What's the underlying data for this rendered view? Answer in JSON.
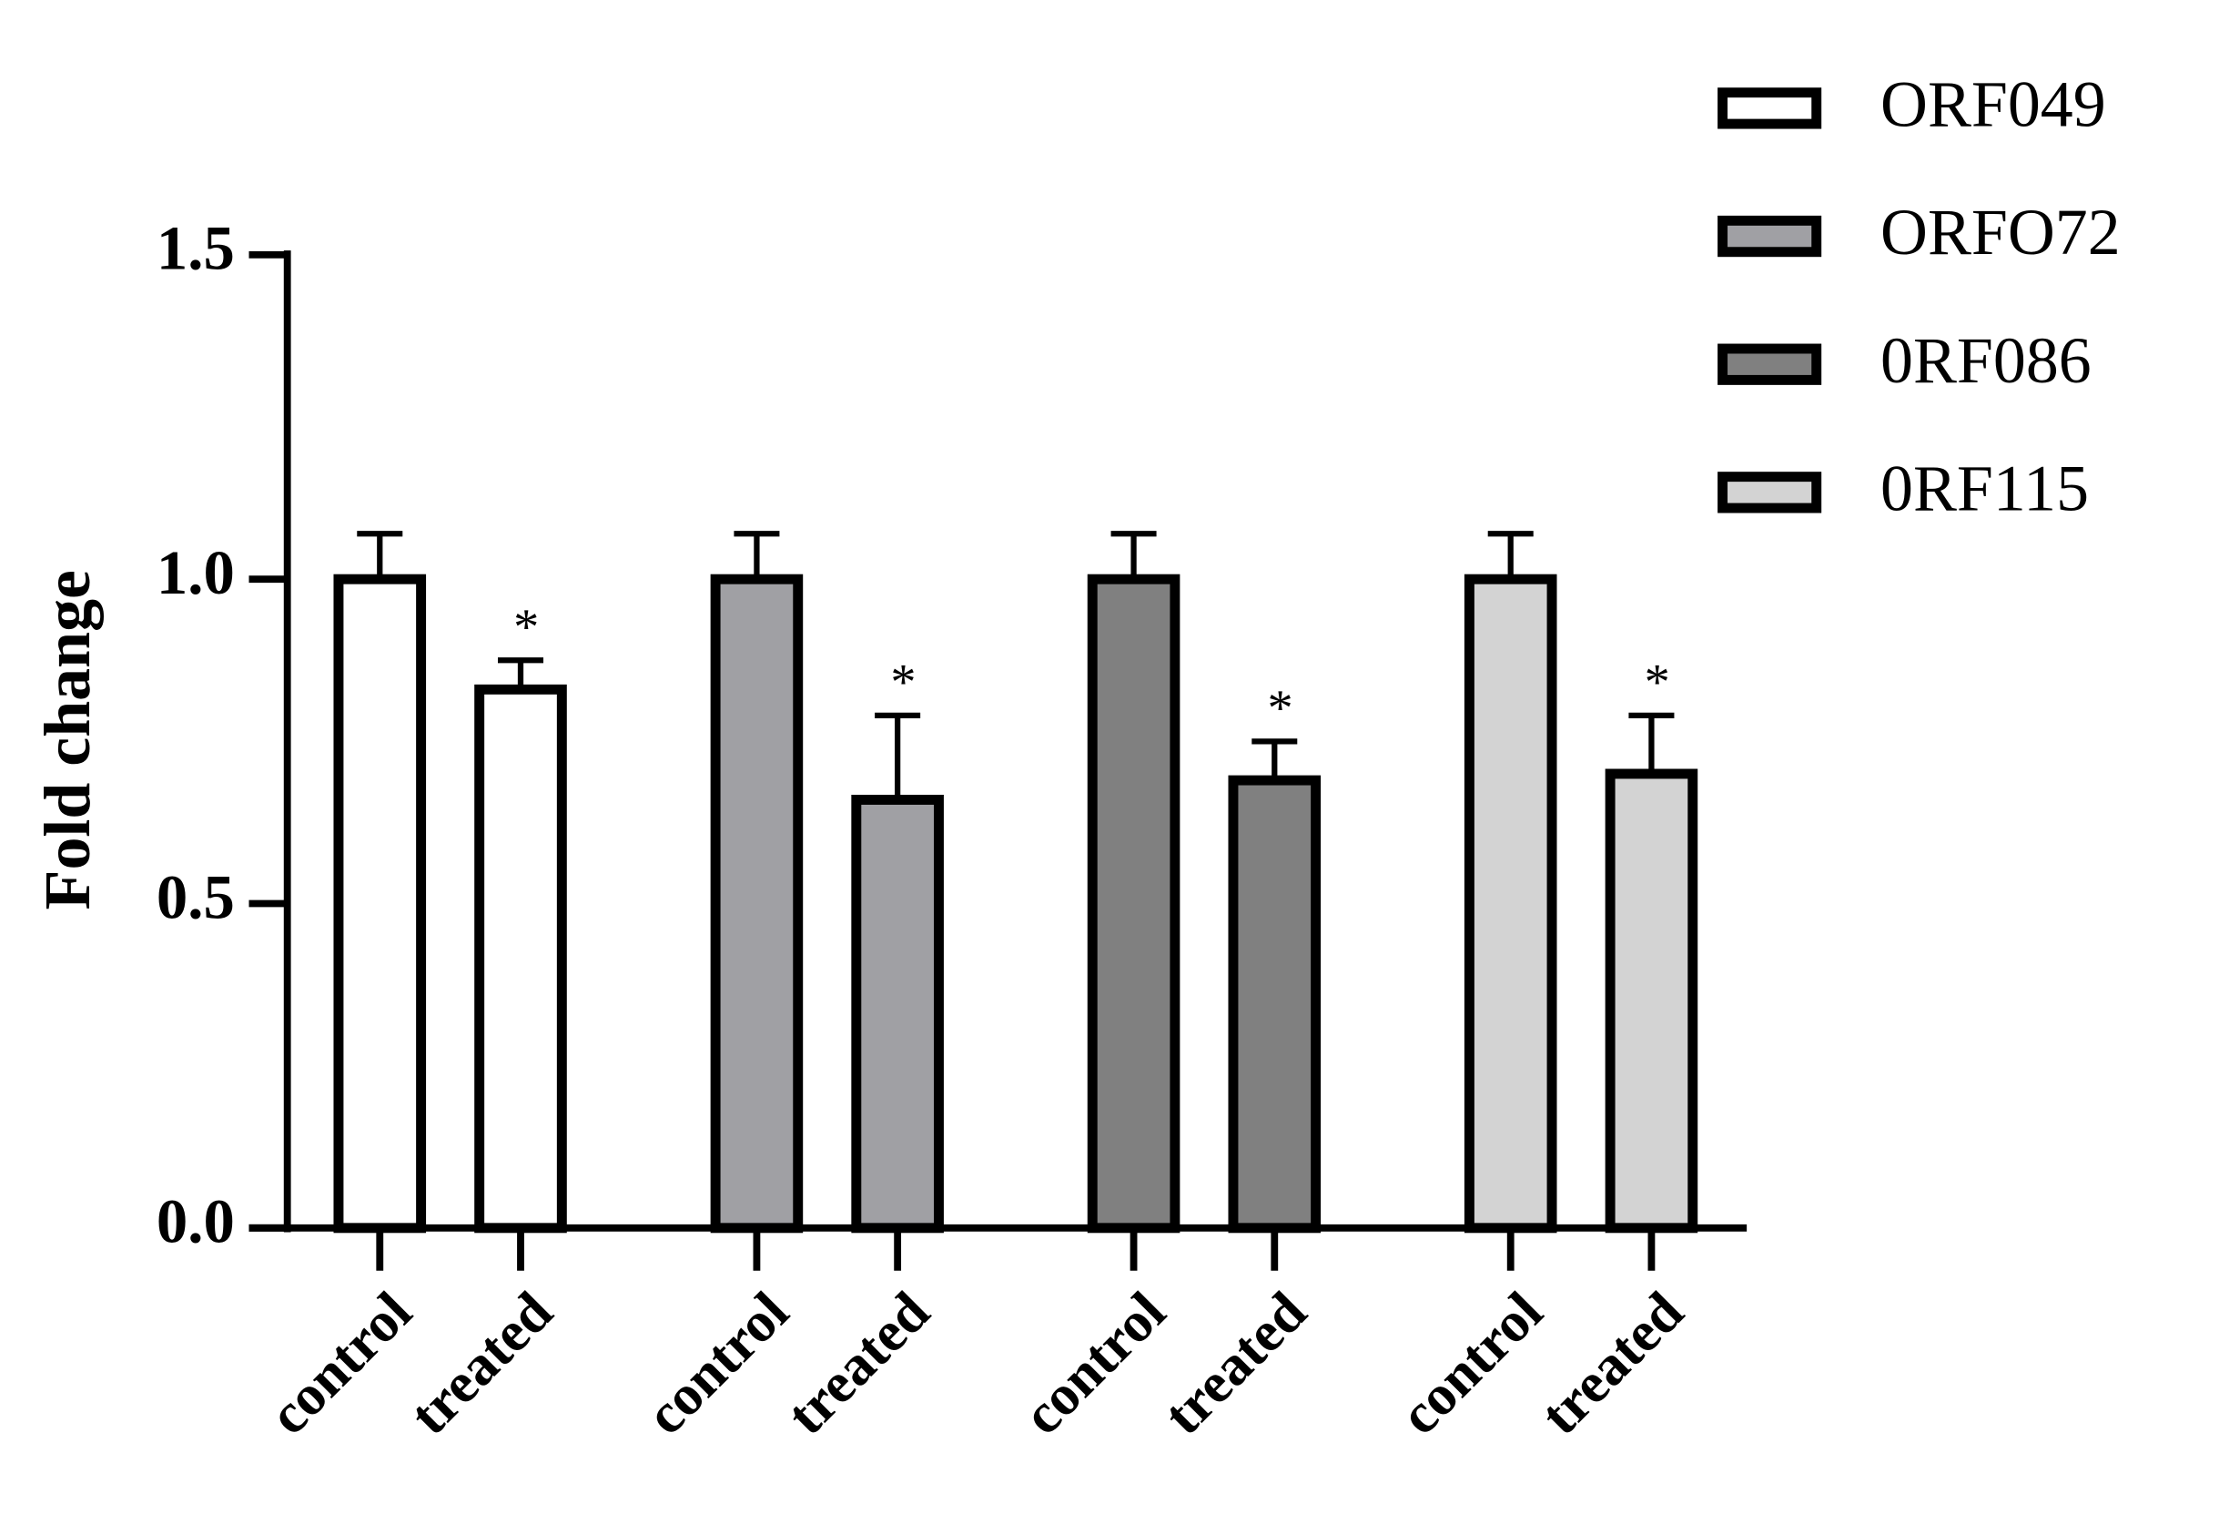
{
  "chart_data": {
    "type": "bar",
    "categories": [
      "control",
      "treated"
    ],
    "series": [
      {
        "name": "ORF049",
        "color": "#ffffff",
        "values": [
          1.0,
          0.83
        ],
        "errors": [
          0.07,
          0.045
        ],
        "annotation": "*"
      },
      {
        "name": "ORFO72",
        "color": "#a0a0a4",
        "values": [
          1.0,
          0.66
        ],
        "errors": [
          0.07,
          0.13
        ],
        "annotation": "*"
      },
      {
        "name": "0RF086",
        "color": "#808080",
        "values": [
          1.0,
          0.69
        ],
        "errors": [
          0.07,
          0.06
        ],
        "annotation": "*"
      },
      {
        "name": "0RF115",
        "color": "#d3d3d3",
        "values": [
          1.0,
          0.7
        ],
        "errors": [
          0.07,
          0.09
        ],
        "annotation": "*"
      }
    ],
    "ylabel": "Fold change",
    "ylim": [
      0,
      1.5
    ],
    "yticks": [
      {
        "value": 0,
        "label": "0.0"
      },
      {
        "value": 0.5,
        "label": "0.5"
      },
      {
        "value": 1,
        "label": "1.0"
      },
      {
        "value": 1.5,
        "label": "1.5"
      }
    ],
    "legend": "top-right"
  }
}
